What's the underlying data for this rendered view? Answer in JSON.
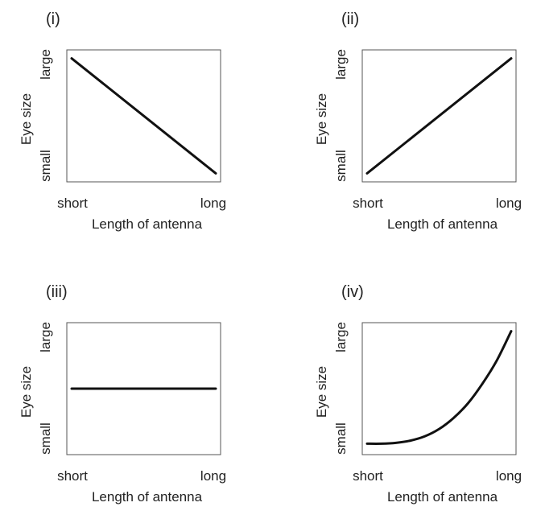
{
  "chart_data": [
    {
      "type": "line",
      "panel_label": "(i)",
      "xlabel": "Length of antenna",
      "ylabel": "Eye size",
      "xticks": [
        "short",
        "long"
      ],
      "yticks": [
        "small",
        "large"
      ],
      "xlim": [
        0,
        1
      ],
      "ylim": [
        0,
        1
      ],
      "series": [
        {
          "x": [
            0.0,
            1.0
          ],
          "y": [
            0.97,
            0.03
          ]
        }
      ]
    },
    {
      "type": "line",
      "panel_label": "(ii)",
      "xlabel": "Length of antenna",
      "ylabel": "Eye size",
      "xticks": [
        "short",
        "long"
      ],
      "yticks": [
        "small",
        "large"
      ],
      "xlim": [
        0,
        1
      ],
      "ylim": [
        0,
        1
      ],
      "series": [
        {
          "x": [
            0.0,
            1.0
          ],
          "y": [
            0.03,
            0.97
          ]
        }
      ]
    },
    {
      "type": "line",
      "panel_label": "(iii)",
      "xlabel": "Length of antenna",
      "ylabel": "Eye size",
      "xticks": [
        "short",
        "long"
      ],
      "yticks": [
        "small",
        "large"
      ],
      "xlim": [
        0,
        1
      ],
      "ylim": [
        0,
        1
      ],
      "series": [
        {
          "x": [
            0.0,
            1.0
          ],
          "y": [
            0.5,
            0.5
          ]
        }
      ]
    },
    {
      "type": "line",
      "panel_label": "(iv)",
      "xlabel": "Length of antenna",
      "ylabel": "Eye size",
      "xticks": [
        "short",
        "long"
      ],
      "yticks": [
        "small",
        "large"
      ],
      "xlim": [
        0,
        1
      ],
      "ylim": [
        0,
        1
      ],
      "series": [
        {
          "x": [
            0.0,
            0.1,
            0.2,
            0.3,
            0.4,
            0.5,
            0.6,
            0.7,
            0.8,
            0.9,
            1.0
          ],
          "y": [
            0.05,
            0.05,
            0.057,
            0.075,
            0.11,
            0.17,
            0.26,
            0.38,
            0.54,
            0.73,
            0.97
          ]
        }
      ]
    }
  ]
}
